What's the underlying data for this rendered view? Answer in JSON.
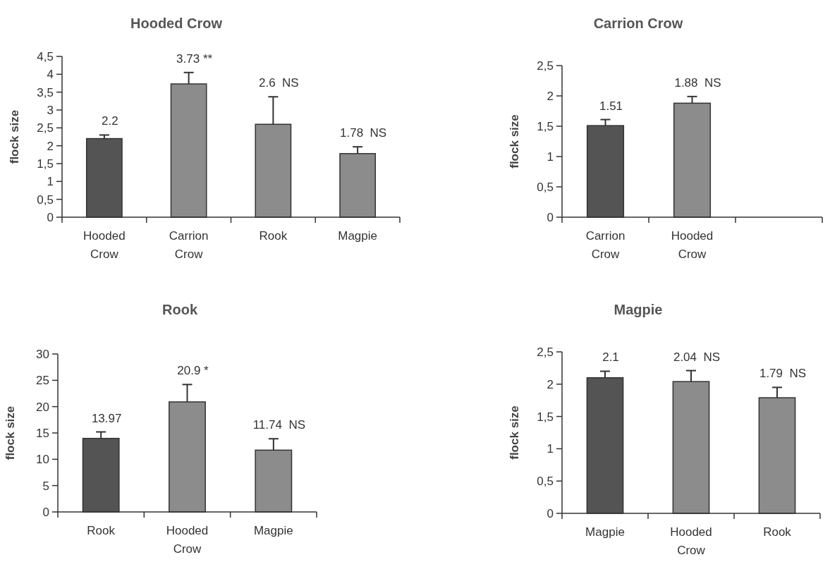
{
  "chart_data": [
    {
      "type": "bar",
      "title": "Hooded Crow",
      "ylabel": "flock size",
      "categories": [
        "Hooded Crow",
        "Carrion Crow",
        "Rook",
        "Magpie"
      ],
      "values": [
        2.2,
        3.73,
        2.6,
        1.78
      ],
      "errors": [
        [
          2.2,
          2.3
        ],
        [
          3.73,
          4.05
        ],
        [
          2.6,
          3.37
        ],
        [
          1.78,
          1.97
        ]
      ],
      "value_labels": [
        "2.2",
        "3.73 **",
        "2.6  NS",
        "1.78  NS"
      ],
      "colors": [
        "#545454",
        "#8c8c8c",
        "#8c8c8c",
        "#8c8c8c"
      ],
      "ylim": [
        0,
        4.5
      ],
      "yticks": [
        0,
        {
          "value": 0.5,
          "label": "0,5"
        },
        1,
        {
          "value": 1.5,
          "label": "1,5"
        },
        2,
        {
          "value": 2.5,
          "label": "2,5"
        },
        3,
        {
          "value": 3.5,
          "label": "3,5"
        },
        4,
        {
          "value": 4.5,
          "label": "4,5"
        }
      ],
      "grid": false
    },
    {
      "type": "bar",
      "title": "Carrion Crow",
      "ylabel": "flock size",
      "categories": [
        "Carrion Crow",
        "Hooded Crow",
        null
      ],
      "values": [
        1.51,
        1.88,
        null
      ],
      "errors": [
        [
          1.51,
          1.61
        ],
        [
          1.88,
          1.99
        ],
        null
      ],
      "value_labels": [
        "1.51",
        "1.88  NS",
        null
      ],
      "colors": [
        "#545454",
        "#8c8c8c",
        null
      ],
      "ylim": [
        0,
        2.5
      ],
      "yticks": [
        0,
        {
          "value": 0.5,
          "label": "0,5"
        },
        1,
        {
          "value": 1.5,
          "label": "1,5"
        },
        2,
        {
          "value": 2.5,
          "label": "2,5"
        }
      ],
      "grid": false
    },
    {
      "type": "bar",
      "title": "Rook",
      "ylabel": "flock size",
      "categories": [
        "Rook",
        "Hooded Crow",
        "Magpie"
      ],
      "values": [
        13.97,
        20.9,
        11.74
      ],
      "errors": [
        [
          13.97,
          15.2
        ],
        [
          20.9,
          24.2
        ],
        [
          11.74,
          13.9
        ]
      ],
      "value_labels": [
        "13.97",
        "20.9 *",
        "11.74  NS"
      ],
      "colors": [
        "#545454",
        "#8c8c8c",
        "#8c8c8c"
      ],
      "ylim": [
        0,
        30
      ],
      "yticks": [
        0,
        5,
        10,
        15,
        20,
        25,
        30
      ],
      "grid": false
    },
    {
      "type": "bar",
      "title": "Magpie",
      "ylabel": "flock size",
      "categories": [
        "Magpie",
        "Hooded Crow",
        "Rook"
      ],
      "values": [
        2.1,
        2.04,
        1.79
      ],
      "errors": [
        [
          2.1,
          2.2
        ],
        [
          2.04,
          2.21
        ],
        [
          1.79,
          1.95
        ]
      ],
      "value_labels": [
        "2.1",
        "2.04  NS",
        "1.79  NS"
      ],
      "colors": [
        "#545454",
        "#8c8c8c",
        "#8c8c8c"
      ],
      "ylim": [
        0,
        2.5
      ],
      "yticks": [
        0,
        {
          "value": 0.5,
          "label": "0,5"
        },
        1,
        {
          "value": 1.5,
          "label": "1,5"
        },
        2,
        {
          "value": 2.5,
          "label": "2,5"
        }
      ],
      "grid": false
    }
  ]
}
